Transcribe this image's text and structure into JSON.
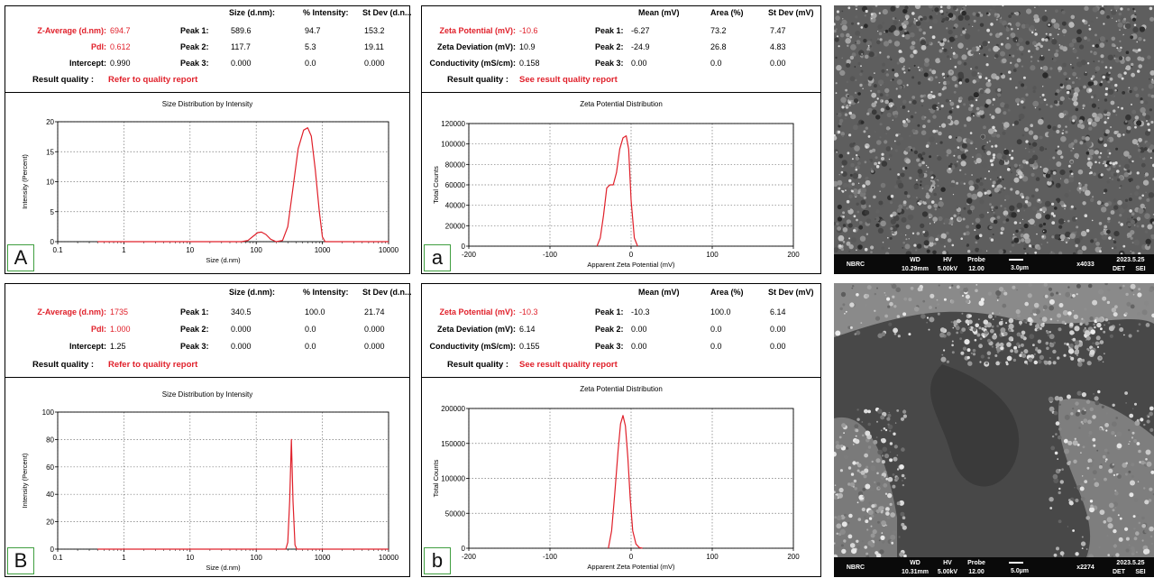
{
  "dls": [
    {
      "id": "A",
      "panel_label": "A",
      "header": {
        "col_size": "Size (d.nm):",
        "col_int": "% Intensity:",
        "col_sd": "St Dev (d.n...",
        "z_label": "Z-Average (d.nm):",
        "z_value": "694.7",
        "pdi_label": "PdI:",
        "pdi_value": "0.612",
        "int_label": "Intercept:",
        "int_value": "0.990",
        "rq_label": "Result quality :",
        "rq_value": "Refer to quality report",
        "peaks": [
          {
            "label": "Peak 1:",
            "size": "589.6",
            "intensity": "94.7",
            "sd": "153.2"
          },
          {
            "label": "Peak 2:",
            "size": "117.7",
            "intensity": "5.3",
            "sd": "19.11"
          },
          {
            "label": "Peak 3:",
            "size": "0.000",
            "intensity": "0.0",
            "sd": "0.000"
          }
        ]
      },
      "chart_data": {
        "type": "line",
        "title": "Size Distribution by Intensity",
        "xlabel": "Size (d.nm)",
        "ylabel": "Intensity (Percent)",
        "x_scale": "log",
        "xlim": [
          0.1,
          10000
        ],
        "ylim": [
          0,
          20
        ],
        "xticks": [
          0.1,
          1,
          10,
          100,
          1000,
          10000
        ],
        "xtick_labels": [
          "0.1",
          "1",
          "10",
          "100",
          "1000",
          "10000"
        ],
        "yticks": [
          0,
          5,
          10,
          15,
          20
        ],
        "ytick_labels": [
          "0",
          "5",
          "10",
          "15",
          "20"
        ],
        "grid": true,
        "color": "#e0202a",
        "series": [
          {
            "x": [
              0.4,
              60,
              75,
              90,
              105,
              120,
              140,
              165,
              200,
              250,
              300,
              360,
              430,
              520,
              600,
              680,
              780,
              900,
              1000,
              1100,
              10000
            ],
            "y": [
              0,
              0,
              0.2,
              0.9,
              1.5,
              1.6,
              1.2,
              0.4,
              0,
              0.2,
              2.5,
              9,
              15.5,
              18.6,
              19,
              17.6,
              12,
              5,
              0.8,
              0,
              0
            ]
          }
        ]
      }
    },
    {
      "id": "B",
      "panel_label": "B",
      "header": {
        "col_size": "Size (d.nm):",
        "col_int": "% Intensity:",
        "col_sd": "St Dev (d.n...",
        "z_label": "Z-Average (d.nm):",
        "z_value": "1735",
        "pdi_label": "PdI:",
        "pdi_value": "1.000",
        "int_label": "Intercept:",
        "int_value": "1.25",
        "rq_label": "Result quality :",
        "rq_value": "Refer to quality report",
        "peaks": [
          {
            "label": "Peak 1:",
            "size": "340.5",
            "intensity": "100.0",
            "sd": "21.74"
          },
          {
            "label": "Peak 2:",
            "size": "0.000",
            "intensity": "0.0",
            "sd": "0.000"
          },
          {
            "label": "Peak 3:",
            "size": "0.000",
            "intensity": "0.0",
            "sd": "0.000"
          }
        ]
      },
      "chart_data": {
        "type": "line",
        "title": "Size Distribution by Intensity",
        "xlabel": "Size (d.nm)",
        "ylabel": "Intensity (Percent)",
        "x_scale": "log",
        "xlim": [
          0.1,
          10000
        ],
        "ylim": [
          0,
          100
        ],
        "xticks": [
          0.1,
          1,
          10,
          100,
          1000,
          10000
        ],
        "xtick_labels": [
          "0.1",
          "1",
          "10",
          "100",
          "1000",
          "10000"
        ],
        "yticks": [
          0,
          20,
          40,
          60,
          80,
          100
        ],
        "ytick_labels": [
          "0",
          "20",
          "40",
          "60",
          "80",
          "100"
        ],
        "grid": true,
        "color": "#e0202a",
        "series": [
          {
            "x": [
              0.4,
              280,
              300,
              320,
              340,
              360,
              385,
              410,
              10000
            ],
            "y": [
              0,
              0,
              5,
              35,
              80,
              35,
              3,
              0,
              0
            ]
          }
        ]
      }
    }
  ],
  "zeta": [
    {
      "id": "a",
      "panel_label": "a",
      "header": {
        "col_mean": "Mean (mV)",
        "col_area": "Area (%)",
        "col_sd": "St Dev (mV)",
        "zp_label": "Zeta Potential (mV):",
        "zp_value": "-10.6",
        "zd_label": "Zeta Deviation (mV):",
        "zd_value": "10.9",
        "cond_label": "Conductivity (mS/cm):",
        "cond_value": "0.158",
        "rq_label": "Result quality :",
        "rq_value": "See result quality report",
        "peaks": [
          {
            "label": "Peak 1:",
            "mean": "-6.27",
            "area": "73.2",
            "sd": "7.47"
          },
          {
            "label": "Peak 2:",
            "mean": "-24.9",
            "area": "26.8",
            "sd": "4.83"
          },
          {
            "label": "Peak 3:",
            "mean": "0.00",
            "area": "0.0",
            "sd": "0.00"
          }
        ]
      },
      "chart_data": {
        "type": "line",
        "title": "Zeta Potential Distribution",
        "xlabel": "Apparent Zeta Potential (mV)",
        "ylabel": "Total Counts",
        "xlim": [
          -200,
          200
        ],
        "ylim": [
          0,
          120000
        ],
        "xticks": [
          -200,
          -100,
          0,
          100,
          200
        ],
        "xtick_labels": [
          "-200",
          "-100",
          "0",
          "100",
          "200"
        ],
        "yticks": [
          0,
          20000,
          40000,
          60000,
          80000,
          100000,
          120000
        ],
        "ytick_labels": [
          "0",
          "20000",
          "40000",
          "60000",
          "80000",
          "100000",
          "120000"
        ],
        "grid": true,
        "color": "#e0202a",
        "series": [
          {
            "x": [
              -42,
              -38,
              -34,
              -30,
              -26,
              -22,
              -18,
              -14,
              -10,
              -6,
              -3,
              0,
              4,
              8
            ],
            "y": [
              0,
              8000,
              30000,
              57000,
              60000,
              60000,
              72000,
              95000,
              106000,
              108000,
              95000,
              45000,
              8000,
              0
            ]
          }
        ]
      }
    },
    {
      "id": "b",
      "panel_label": "b",
      "header": {
        "col_mean": "Mean (mV)",
        "col_area": "Area (%)",
        "col_sd": "St Dev (mV)",
        "zp_label": "Zeta Potential (mV):",
        "zp_value": "-10.3",
        "zd_label": "Zeta Deviation (mV):",
        "zd_value": "6.14",
        "cond_label": "Conductivity (mS/cm):",
        "cond_value": "0.155",
        "rq_label": "Result quality :",
        "rq_value": "See result quality report",
        "peaks": [
          {
            "label": "Peak 1:",
            "mean": "-10.3",
            "area": "100.0",
            "sd": "6.14"
          },
          {
            "label": "Peak 2:",
            "mean": "0.00",
            "area": "0.0",
            "sd": "0.00"
          },
          {
            "label": "Peak 3:",
            "mean": "0.00",
            "area": "0.0",
            "sd": "0.00"
          }
        ]
      },
      "chart_data": {
        "type": "line",
        "title": "Zeta Potential Distribution",
        "xlabel": "Apparent Zeta Potential (mV)",
        "ylabel": "Total Counts",
        "xlim": [
          -200,
          200
        ],
        "ylim": [
          0,
          200000
        ],
        "xticks": [
          -200,
          -100,
          0,
          100,
          200
        ],
        "xtick_labels": [
          "-200",
          "-100",
          "0",
          "100",
          "200"
        ],
        "yticks": [
          0,
          50000,
          100000,
          150000,
          200000
        ],
        "ytick_labels": [
          "0",
          "50000",
          "100000",
          "150000",
          "200000"
        ],
        "grid": true,
        "color": "#e0202a",
        "series": [
          {
            "x": [
              -28,
              -24,
              -20,
              -16,
              -13,
              -10,
              -7,
              -4,
              -1,
              2,
              6,
              10,
              14
            ],
            "y": [
              0,
              25000,
              80000,
              140000,
              178000,
              190000,
              175000,
              130000,
              70000,
              25000,
              6000,
              1000,
              0
            ]
          }
        ]
      }
    }
  ],
  "sem": [
    {
      "org": "NBRC",
      "wd_label": "WD",
      "wd": "10.29mm",
      "hv_label": "HV",
      "hv": "5.00kV",
      "probe_label": "Probe",
      "probe": "12.00",
      "scale": "3.0µm",
      "mag": "x4033",
      "date": "2023.5.25",
      "det": "DET",
      "mode": "SEI",
      "surface": "granular"
    },
    {
      "org": "NBRC",
      "wd_label": "WD",
      "wd": "10.31mm",
      "hv_label": "HV",
      "hv": "5.00kV",
      "probe_label": "Probe",
      "probe": "12.00",
      "scale": "5.0µm",
      "mag": "x2274",
      "date": "2023.5.25",
      "det": "DET",
      "mode": "SEI",
      "surface": "smooth-with-deposits"
    }
  ]
}
